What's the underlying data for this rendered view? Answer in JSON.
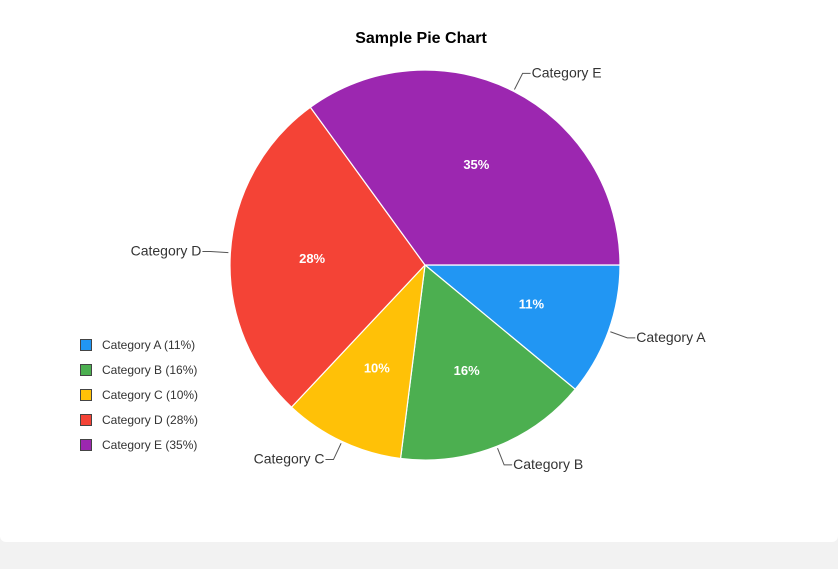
{
  "chart_data": {
    "type": "pie",
    "title": "Sample Pie Chart",
    "slices": [
      {
        "label": "Category A",
        "value": 11,
        "percent_label": "11%",
        "legend": "Category A (11%)",
        "color": "#2196F3"
      },
      {
        "label": "Category B",
        "value": 16,
        "percent_label": "16%",
        "legend": "Category B (16%)",
        "color": "#4CAF50"
      },
      {
        "label": "Category C",
        "value": 10,
        "percent_label": "10%",
        "legend": "Category C (10%)",
        "color": "#FFC107"
      },
      {
        "label": "Category D",
        "value": 28,
        "percent_label": "28%",
        "legend": "Category D (28%)",
        "color": "#F44336"
      },
      {
        "label": "Category E",
        "value": 35,
        "percent_label": "35%",
        "legend": "Category E (35%)",
        "color": "#9C27B0"
      }
    ],
    "start_direction": "3 o'clock",
    "slice_order": "clockwise",
    "legend_placement": "left"
  }
}
